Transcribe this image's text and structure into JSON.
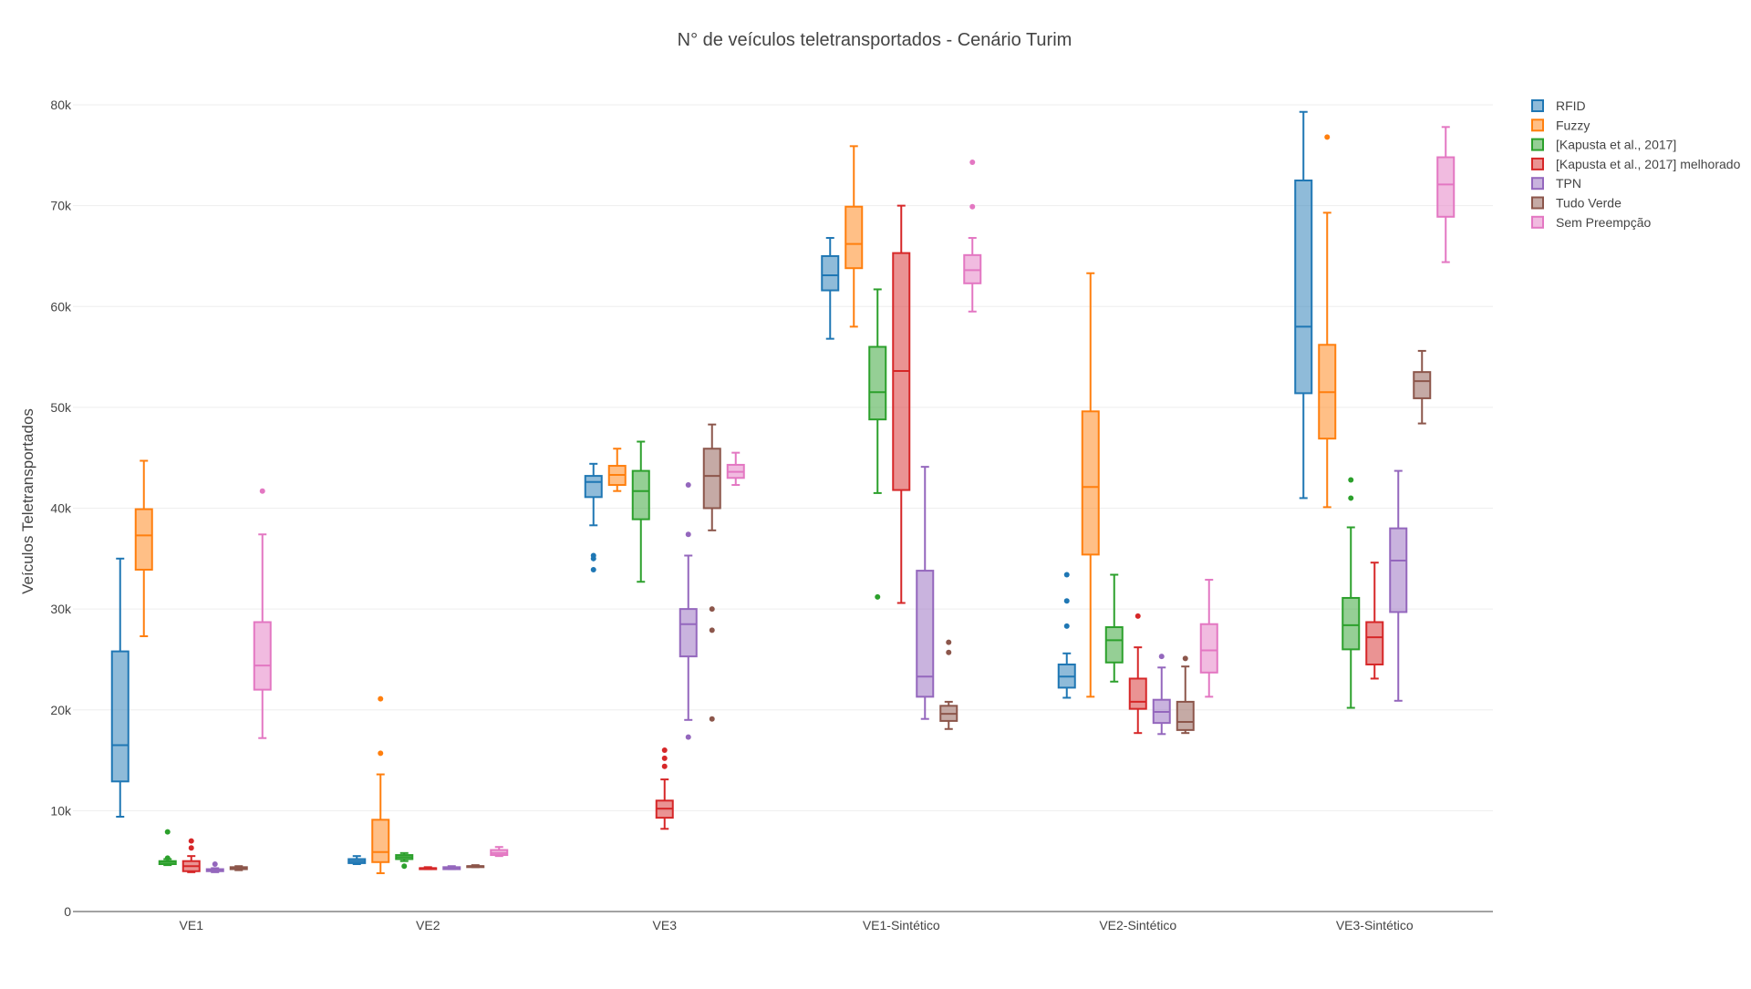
{
  "chart_data": {
    "type": "box",
    "title": "N° de veículos teletransportados - Cenário Turim",
    "xlabel": "",
    "ylabel": "Veículos Teletransportados",
    "ylim": [
      0,
      80000
    ],
    "yticks": [
      0,
      10000,
      20000,
      30000,
      40000,
      50000,
      60000,
      70000,
      80000
    ],
    "ytick_labels": [
      "0",
      "10k",
      "20k",
      "30k",
      "40k",
      "50k",
      "60k",
      "70k",
      "80k"
    ],
    "grid": true,
    "legend_position": "top-right",
    "categories": [
      "VE1",
      "VE2",
      "VE3",
      "VE1-Sintético",
      "VE2-Sintético",
      "VE3-Sintético"
    ],
    "series": [
      {
        "name": "RFID",
        "color": "#1f77b4",
        "boxes": [
          {
            "min": 9400,
            "q1": 12900,
            "median": 16500,
            "q3": 25800,
            "max": 35000,
            "outliers": []
          },
          {
            "min": 4700,
            "q1": 4800,
            "median": 5000,
            "q3": 5200,
            "max": 5500,
            "outliers": []
          },
          {
            "min": 38300,
            "q1": 41100,
            "median": 42600,
            "q3": 43200,
            "max": 44400,
            "outliers": [
              35300,
              35000,
              33900
            ]
          },
          {
            "min": 56800,
            "q1": 61600,
            "median": 63100,
            "q3": 65000,
            "max": 66800,
            "outliers": []
          },
          {
            "min": 21200,
            "q1": 22200,
            "median": 23300,
            "q3": 24500,
            "max": 25600,
            "outliers": [
              33400,
              30800,
              28300
            ]
          },
          {
            "min": 41000,
            "q1": 51400,
            "median": 58000,
            "q3": 72500,
            "max": 79300,
            "outliers": []
          }
        ]
      },
      {
        "name": "Fuzzy",
        "color": "#ff7f0e",
        "boxes": [
          {
            "min": 27300,
            "q1": 33900,
            "median": 37300,
            "q3": 39900,
            "max": 44700,
            "outliers": []
          },
          {
            "min": 3800,
            "q1": 4900,
            "median": 5900,
            "q3": 9100,
            "max": 13600,
            "outliers": [
              21100,
              15700
            ]
          },
          {
            "min": 41700,
            "q1": 42300,
            "median": 43300,
            "q3": 44200,
            "max": 45900,
            "outliers": []
          },
          {
            "min": 58000,
            "q1": 63800,
            "median": 66200,
            "q3": 69900,
            "max": 75900,
            "outliers": []
          },
          {
            "min": 21300,
            "q1": 35400,
            "median": 42100,
            "q3": 49600,
            "max": 63300,
            "outliers": []
          },
          {
            "min": 40100,
            "q1": 46900,
            "median": 51500,
            "q3": 56200,
            "max": 69300,
            "outliers": [
              76800
            ]
          }
        ]
      },
      {
        "name": "[Kapusta et al., 2017]",
        "color": "#2ca02c",
        "boxes": [
          {
            "min": 4600,
            "q1": 4700,
            "median": 4900,
            "q3": 5000,
            "max": 5200,
            "outliers": [
              7900,
              5300
            ]
          },
          {
            "min": 5000,
            "q1": 5200,
            "median": 5400,
            "q3": 5600,
            "max": 5800,
            "outliers": [
              4500
            ]
          },
          {
            "min": 32700,
            "q1": 38900,
            "median": 41700,
            "q3": 43700,
            "max": 46600,
            "outliers": []
          },
          {
            "min": 41500,
            "q1": 48800,
            "median": 51500,
            "q3": 56000,
            "max": 61700,
            "outliers": [
              31200
            ]
          },
          {
            "min": 22800,
            "q1": 24700,
            "median": 26900,
            "q3": 28200,
            "max": 33400,
            "outliers": []
          },
          {
            "min": 20200,
            "q1": 26000,
            "median": 28400,
            "q3": 31100,
            "max": 38100,
            "outliers": [
              42800,
              41000
            ]
          }
        ]
      },
      {
        "name": "[Kapusta et al., 2017] melhorado",
        "color": "#d62728",
        "boxes": [
          {
            "min": 3900,
            "q1": 4000,
            "median": 4500,
            "q3": 5000,
            "max": 5500,
            "outliers": [
              7000,
              6300
            ]
          },
          {
            "min": 4200,
            "q1": 4200,
            "median": 4300,
            "q3": 4300,
            "max": 4400,
            "outliers": []
          },
          {
            "min": 8200,
            "q1": 9300,
            "median": 10200,
            "q3": 11000,
            "max": 13100,
            "outliers": [
              16000,
              15200,
              14400
            ]
          },
          {
            "min": 30600,
            "q1": 41800,
            "median": 53600,
            "q3": 65300,
            "max": 70000,
            "outliers": []
          },
          {
            "min": 17700,
            "q1": 20100,
            "median": 20800,
            "q3": 23100,
            "max": 26200,
            "outliers": [
              29300
            ]
          },
          {
            "min": 23100,
            "q1": 24500,
            "median": 27200,
            "q3": 28700,
            "max": 34600,
            "outliers": []
          }
        ]
      },
      {
        "name": "TPN",
        "color": "#9467bd",
        "boxes": [
          {
            "min": 3900,
            "q1": 4000,
            "median": 4100,
            "q3": 4200,
            "max": 4300,
            "outliers": [
              4700
            ]
          },
          {
            "min": 4200,
            "q1": 4200,
            "median": 4300,
            "q3": 4400,
            "max": 4500,
            "outliers": []
          },
          {
            "min": 19000,
            "q1": 25300,
            "median": 28500,
            "q3": 30000,
            "max": 35300,
            "outliers": [
              42300,
              37400,
              17300
            ]
          },
          {
            "min": 19100,
            "q1": 21300,
            "median": 23300,
            "q3": 33800,
            "max": 44100,
            "outliers": []
          },
          {
            "min": 17600,
            "q1": 18700,
            "median": 19800,
            "q3": 21000,
            "max": 24200,
            "outliers": [
              25300
            ]
          },
          {
            "min": 20900,
            "q1": 29700,
            "median": 34800,
            "q3": 38000,
            "max": 43700,
            "outliers": []
          }
        ]
      },
      {
        "name": "Tudo Verde",
        "color": "#8c564b",
        "boxes": [
          {
            "min": 4100,
            "q1": 4200,
            "median": 4300,
            "q3": 4400,
            "max": 4500,
            "outliers": []
          },
          {
            "min": 4400,
            "q1": 4400,
            "median": 4500,
            "q3": 4500,
            "max": 4600,
            "outliers": []
          },
          {
            "min": 37800,
            "q1": 40000,
            "median": 43200,
            "q3": 45900,
            "max": 48300,
            "outliers": [
              30000,
              27900,
              19100
            ]
          },
          {
            "min": 18100,
            "q1": 18900,
            "median": 19600,
            "q3": 20400,
            "max": 20800,
            "outliers": [
              26700,
              25700
            ]
          },
          {
            "min": 17700,
            "q1": 18000,
            "median": 18800,
            "q3": 20800,
            "max": 24300,
            "outliers": [
              25100
            ]
          },
          {
            "min": 48400,
            "q1": 50900,
            "median": 52600,
            "q3": 53500,
            "max": 55600,
            "outliers": []
          }
        ]
      },
      {
        "name": "Sem Preempção",
        "color": "#e377c2",
        "boxes": [
          {
            "min": 17200,
            "q1": 22000,
            "median": 24400,
            "q3": 28700,
            "max": 37400,
            "outliers": [
              41700
            ]
          },
          {
            "min": 5500,
            "q1": 5600,
            "median": 5800,
            "q3": 6100,
            "max": 6400,
            "outliers": []
          },
          {
            "min": 42300,
            "q1": 43000,
            "median": 43600,
            "q3": 44300,
            "max": 45500,
            "outliers": []
          },
          {
            "min": 59500,
            "q1": 62300,
            "median": 63600,
            "q3": 65100,
            "max": 66800,
            "outliers": [
              74300,
              69900
            ]
          },
          {
            "min": 21300,
            "q1": 23700,
            "median": 25900,
            "q3": 28500,
            "max": 32900,
            "outliers": []
          },
          {
            "min": 64400,
            "q1": 68900,
            "median": 72100,
            "q3": 74800,
            "max": 77800,
            "outliers": []
          }
        ]
      }
    ]
  }
}
